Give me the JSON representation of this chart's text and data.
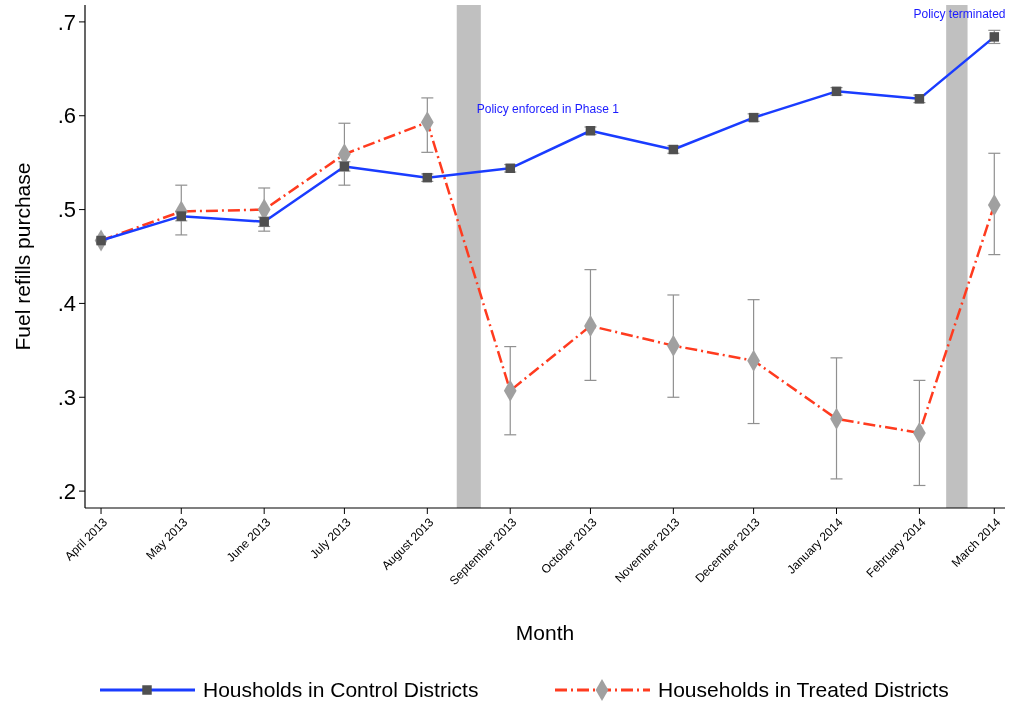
{
  "chart_data": {
    "type": "line",
    "xlabel": "Month",
    "ylabel": "Fuel refills purchase",
    "x": [
      "2013-04",
      "2013-05",
      "2013-06",
      "2013-07",
      "2013-08",
      "2013-09",
      "2013-10",
      "2013-11",
      "2013-12",
      "2014-01",
      "2014-02",
      "2014-03"
    ],
    "xlim": [
      "2013-03-26",
      "2014-03-05"
    ],
    "xticks": [
      {
        "value": "2013-04",
        "label": "April 2013"
      },
      {
        "value": "2013-05",
        "label": "May 2013"
      },
      {
        "value": "2013-06",
        "label": "June 2013"
      },
      {
        "value": "2013-07",
        "label": "July 2013"
      },
      {
        "value": "2013-08",
        "label": "August 2013"
      },
      {
        "value": "2013-09",
        "label": "September 2013"
      },
      {
        "value": "2013-10",
        "label": "October 2013"
      },
      {
        "value": "2013-11",
        "label": "November 2013"
      },
      {
        "value": "2013-12",
        "label": "December 2013"
      },
      {
        "value": "2014-01",
        "label": "January 2014"
      },
      {
        "value": "2014-02",
        "label": "February 2014"
      },
      {
        "value": "2014-03",
        "label": "March 2014"
      }
    ],
    "ylim": [
      0.182,
      0.718
    ],
    "yticks": [
      {
        "value": 0.2,
        "label": ".2"
      },
      {
        "value": 0.3,
        "label": ".3"
      },
      {
        "value": 0.4,
        "label": ".4"
      },
      {
        "value": 0.5,
        "label": ".5"
      },
      {
        "value": 0.6,
        "label": ".6"
      },
      {
        "value": 0.7,
        "label": ".7"
      }
    ],
    "series": [
      {
        "name": "Housholds in Control Districts",
        "color": "#1a3cff",
        "marker": "square",
        "line_style": "solid",
        "values": [
          0.467,
          0.493,
          0.487,
          0.546,
          0.534,
          0.544,
          0.584,
          0.564,
          0.598,
          0.626,
          0.618,
          0.684
        ],
        "errors": [
          null,
          0.005,
          0.005,
          0.005,
          0.004,
          0.004,
          0.004,
          0.004,
          0.004,
          0.004,
          0.004,
          0.007
        ]
      },
      {
        "name": "Households in Treated Districts",
        "color": "#ff3b1f",
        "marker": "diamond",
        "line_style": "dashed",
        "values": [
          0.467,
          0.498,
          0.5,
          0.559,
          0.593,
          0.307,
          0.376,
          0.355,
          0.339,
          0.277,
          0.262,
          0.505
        ],
        "errors": [
          null,
          [
            0.473,
            0.526
          ],
          [
            0.477,
            0.523
          ],
          [
            0.526,
            0.592
          ],
          [
            0.561,
            0.619
          ],
          [
            0.26,
            0.354
          ],
          [
            0.318,
            0.436
          ],
          [
            0.3,
            0.409
          ],
          [
            0.272,
            0.404
          ],
          [
            0.213,
            0.342
          ],
          [
            0.206,
            0.318
          ],
          [
            0.452,
            0.56
          ]
        ]
      }
    ],
    "bands": [
      {
        "axis": "x",
        "from": "2013-08-12",
        "to": "2013-08-21",
        "label": "Policy enforced in Phase 1",
        "color": "#c0c0c0"
      },
      {
        "axis": "x",
        "from": "2014-02-11",
        "to": "2014-02-19",
        "label": "Policy terminated",
        "color": "#c0c0c0"
      }
    ],
    "grid": false,
    "legend": "bottom"
  }
}
